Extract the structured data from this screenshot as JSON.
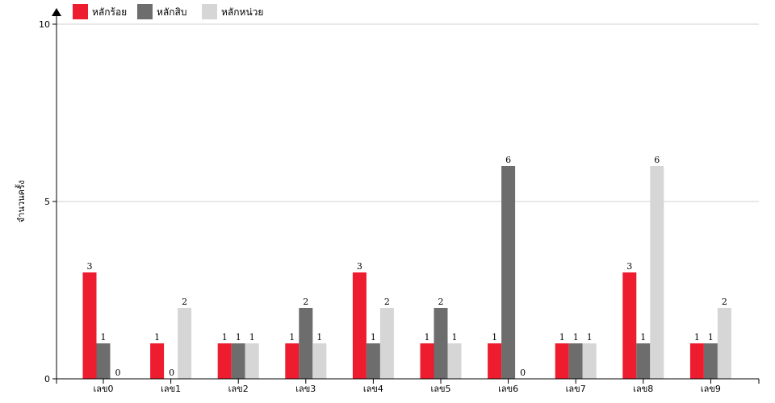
{
  "chart_data": {
    "type": "bar",
    "title": "",
    "xlabel": "",
    "ylabel": "จำนวนครั้ง",
    "ylim": [
      0,
      10
    ],
    "yticks": [
      0,
      5,
      10
    ],
    "grid": true,
    "legend_position": "top-left",
    "categories": [
      "เลข0",
      "เลข1",
      "เลข2",
      "เลข3",
      "เลข4",
      "เลข5",
      "เลข6",
      "เลข7",
      "เลข8",
      "เลข9"
    ],
    "series": [
      {
        "name": "หลักร้อย",
        "color": "#ed1c2e",
        "values": [
          3,
          1,
          1,
          1,
          3,
          1,
          1,
          1,
          3,
          1
        ]
      },
      {
        "name": "หลักสิบ",
        "color": "#6d6d6d",
        "values": [
          1,
          0,
          1,
          2,
          1,
          2,
          6,
          1,
          1,
          1
        ]
      },
      {
        "name": "หลักหน่วย",
        "color": "#d6d6d6",
        "values": [
          0,
          2,
          1,
          1,
          2,
          1,
          0,
          1,
          6,
          2
        ]
      }
    ]
  }
}
